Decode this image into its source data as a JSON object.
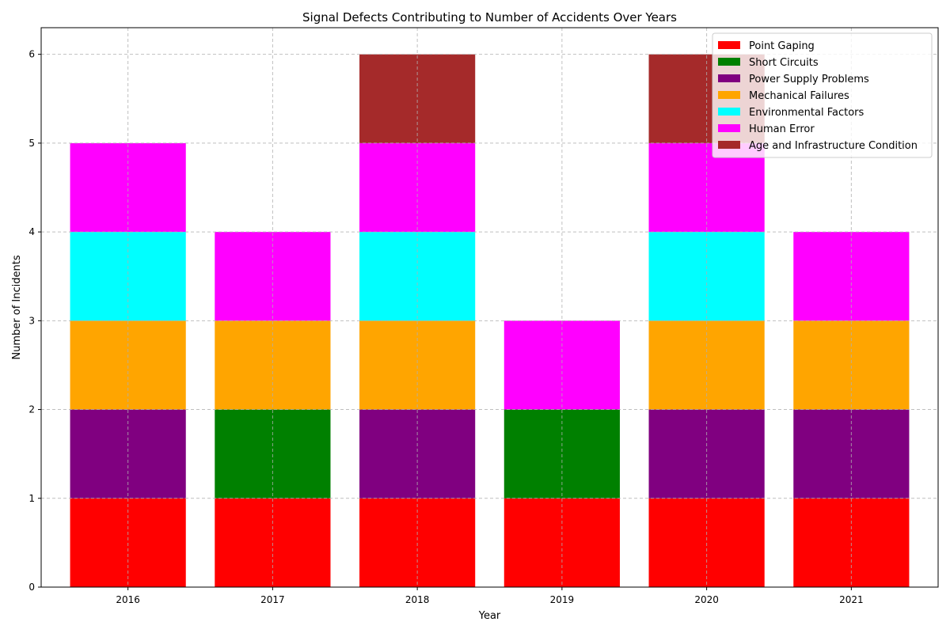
{
  "chart_data": {
    "type": "bar",
    "stacked": true,
    "title": "Signal Defects Contributing to Number of Accidents Over Years",
    "xlabel": "Year",
    "ylabel": "Number of Incidents",
    "categories": [
      "2016",
      "2017",
      "2018",
      "2019",
      "2020",
      "2021"
    ],
    "ylim": [
      0,
      6.3
    ],
    "yticks": [
      0,
      1,
      2,
      3,
      4,
      5,
      6
    ],
    "grid": true,
    "legend_position": "top-right",
    "series": [
      {
        "name": "Point Gaping",
        "color": "#ff0000",
        "values": [
          1,
          1,
          1,
          1,
          1,
          1
        ]
      },
      {
        "name": "Short Circuits",
        "color": "#008000",
        "values": [
          0,
          1,
          0,
          1,
          0,
          0
        ]
      },
      {
        "name": "Power Supply Problems",
        "color": "#800080",
        "values": [
          1,
          0,
          1,
          0,
          1,
          1
        ]
      },
      {
        "name": "Mechanical Failures",
        "color": "#ffa500",
        "values": [
          1,
          1,
          1,
          0,
          1,
          1
        ]
      },
      {
        "name": "Environmental Factors",
        "color": "#00ffff",
        "values": [
          1,
          0,
          1,
          0,
          1,
          0
        ]
      },
      {
        "name": "Human Error",
        "color": "#ff00ff",
        "values": [
          1,
          1,
          1,
          1,
          1,
          1
        ]
      },
      {
        "name": "Age and Infrastructure Condition",
        "color": "#a52a2a",
        "values": [
          0,
          0,
          1,
          0,
          1,
          0
        ]
      }
    ]
  }
}
